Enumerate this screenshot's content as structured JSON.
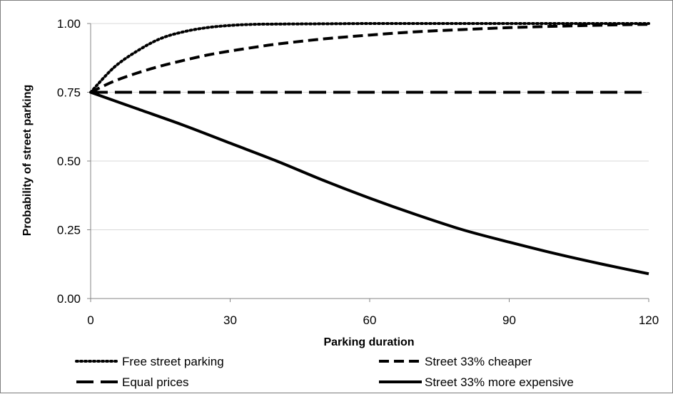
{
  "chart_data": {
    "type": "line",
    "title": "",
    "xlabel": "Parking duration",
    "ylabel": "Probability of street parking",
    "xlim": [
      0,
      120
    ],
    "ylim": [
      0,
      1
    ],
    "x_ticks": [
      "0",
      "30",
      "60",
      "90",
      "120"
    ],
    "y_ticks": [
      "0.00",
      "0.25",
      "0.50",
      "0.75",
      "1.00"
    ],
    "grid": "horizontal",
    "legend_position": "bottom",
    "series": [
      {
        "name": "Free street parking",
        "style": "dotted",
        "x": [
          0,
          5,
          10,
          15,
          20,
          25,
          30,
          35,
          40,
          50,
          60,
          70,
          80,
          90,
          100,
          110,
          120
        ],
        "y": [
          0.75,
          0.84,
          0.9,
          0.945,
          0.97,
          0.985,
          0.993,
          0.997,
          0.998,
          0.999,
          1.0,
          1.0,
          1.0,
          1.0,
          1.0,
          1.0,
          1.0
        ]
      },
      {
        "name": "Street 33% cheaper",
        "style": "short-dash",
        "x": [
          0,
          5,
          10,
          15,
          20,
          25,
          30,
          35,
          40,
          50,
          60,
          70,
          80,
          90,
          100,
          110,
          120
        ],
        "y": [
          0.75,
          0.79,
          0.82,
          0.845,
          0.866,
          0.885,
          0.9,
          0.913,
          0.925,
          0.944,
          0.958,
          0.97,
          0.978,
          0.985,
          0.99,
          0.994,
          0.997
        ]
      },
      {
        "name": "Equal prices",
        "style": "long-dash",
        "x": [
          0,
          120
        ],
        "y": [
          0.75,
          0.75
        ]
      },
      {
        "name": "Street 33% more expensive",
        "style": "solid",
        "x": [
          0,
          10,
          20,
          30,
          40,
          50,
          60,
          70,
          80,
          90,
          100,
          110,
          120
        ],
        "y": [
          0.75,
          0.69,
          0.63,
          0.565,
          0.5,
          0.43,
          0.365,
          0.305,
          0.25,
          0.205,
          0.163,
          0.125,
          0.09
        ]
      }
    ],
    "colors": {
      "line": "#000000",
      "grid": "#d9d9d9",
      "axis": "#868686"
    }
  }
}
